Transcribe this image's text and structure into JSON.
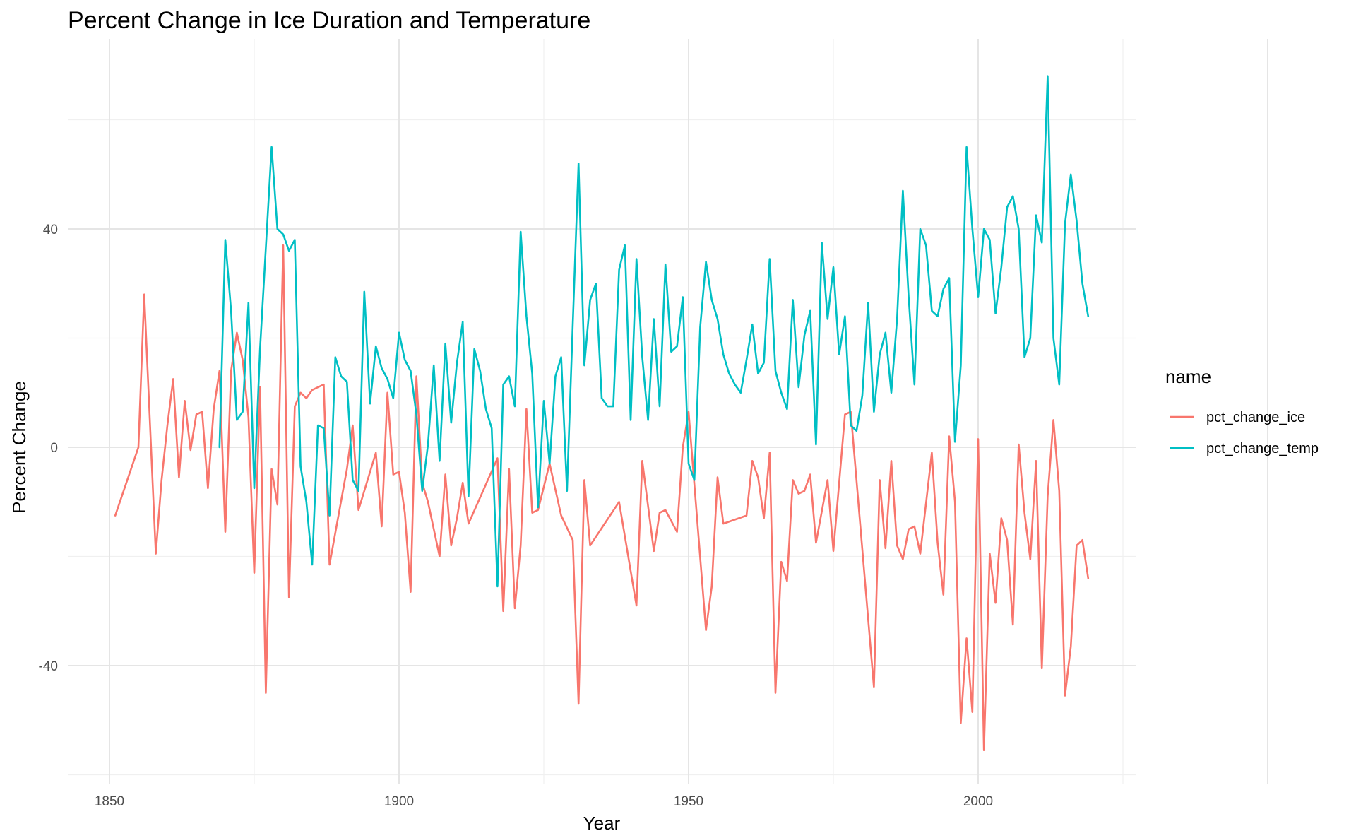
{
  "chart_data": {
    "type": "line",
    "title": "Percent Change in Ice Duration and Temperature",
    "xlabel": "Year",
    "ylabel": "Percent Change",
    "xlim": [
      1843,
      2227
    ],
    "ylim": [
      -60,
      67
    ],
    "x_ticks": [
      1850,
      1900,
      1950,
      2000
    ],
    "y_ticks": [
      -40,
      0,
      40
    ],
    "grid": true,
    "legend": {
      "title": "name",
      "position": "right"
    },
    "series": [
      {
        "name": "pct_change_ice",
        "color": "#F8766D",
        "points": [
          [
            1851,
            -12.5
          ],
          [
            1855,
            0
          ],
          [
            1856,
            28
          ],
          [
            1858,
            -19.5
          ],
          [
            1859,
            -6
          ],
          [
            1860,
            4
          ],
          [
            1861,
            12.5
          ],
          [
            1862,
            -5.5
          ],
          [
            1863,
            8.5
          ],
          [
            1864,
            -0.5
          ],
          [
            1865,
            6
          ],
          [
            1866,
            6.5
          ],
          [
            1867,
            -7.5
          ],
          [
            1868,
            7
          ],
          [
            1869,
            14
          ],
          [
            1870,
            -15.5
          ],
          [
            1871,
            14
          ],
          [
            1872,
            21
          ],
          [
            1873,
            16
          ],
          [
            1874,
            5.5
          ],
          [
            1875,
            -23
          ],
          [
            1876,
            11
          ],
          [
            1877,
            -45
          ],
          [
            1878,
            -4
          ],
          [
            1879,
            -10.5
          ],
          [
            1880,
            37
          ],
          [
            1881,
            -27.5
          ],
          [
            1882,
            7.5
          ],
          [
            1883,
            10
          ],
          [
            1884,
            9
          ],
          [
            1885,
            10.5
          ],
          [
            1886,
            11
          ],
          [
            1887,
            11.5
          ],
          [
            1888,
            -21.5
          ],
          [
            1891,
            -4
          ],
          [
            1892,
            4
          ],
          [
            1893,
            -11.5
          ],
          [
            1896,
            -1
          ],
          [
            1897,
            -14.5
          ],
          [
            1898,
            10
          ],
          [
            1899,
            -5
          ],
          [
            1900,
            -4.5
          ],
          [
            1901,
            -12
          ],
          [
            1902,
            -26.5
          ],
          [
            1903,
            13
          ],
          [
            1904,
            -6.5
          ],
          [
            1905,
            -10
          ],
          [
            1907,
            -20
          ],
          [
            1908,
            -5
          ],
          [
            1909,
            -18
          ],
          [
            1910,
            -13
          ],
          [
            1911,
            -6.5
          ],
          [
            1912,
            -14
          ],
          [
            1917,
            -2
          ],
          [
            1918,
            -30
          ],
          [
            1919,
            -4
          ],
          [
            1920,
            -29.5
          ],
          [
            1921,
            -18
          ],
          [
            1922,
            7
          ],
          [
            1923,
            -12
          ],
          [
            1924,
            -11.5
          ],
          [
            1926,
            -3
          ],
          [
            1928,
            -12.5
          ],
          [
            1930,
            -17
          ],
          [
            1931,
            -47
          ],
          [
            1932,
            -6
          ],
          [
            1933,
            -18
          ],
          [
            1938,
            -10
          ],
          [
            1941,
            -29
          ],
          [
            1942,
            -2.5
          ],
          [
            1944,
            -19
          ],
          [
            1945,
            -12
          ],
          [
            1946,
            -11.5
          ],
          [
            1948,
            -15.5
          ],
          [
            1949,
            0
          ],
          [
            1950,
            6.5
          ],
          [
            1953,
            -33.5
          ],
          [
            1954,
            -25.5
          ],
          [
            1955,
            -5.5
          ],
          [
            1956,
            -14
          ],
          [
            1960,
            -12.5
          ],
          [
            1961,
            -2.5
          ],
          [
            1962,
            -5.5
          ],
          [
            1963,
            -13
          ],
          [
            1964,
            -1
          ],
          [
            1965,
            -45
          ],
          [
            1966,
            -21
          ],
          [
            1967,
            -24.5
          ],
          [
            1968,
            -6
          ],
          [
            1969,
            -8.5
          ],
          [
            1970,
            -8
          ],
          [
            1971,
            -5
          ],
          [
            1972,
            -17.5
          ],
          [
            1974,
            -6
          ],
          [
            1975,
            -19
          ],
          [
            1977,
            6
          ],
          [
            1978,
            6.5
          ],
          [
            1982,
            -44
          ],
          [
            1983,
            -6
          ],
          [
            1984,
            -18.5
          ],
          [
            1985,
            -2.5
          ],
          [
            1986,
            -18
          ],
          [
            1987,
            -20.5
          ],
          [
            1988,
            -15
          ],
          [
            1989,
            -14.5
          ],
          [
            1990,
            -19.5
          ],
          [
            1992,
            -1
          ],
          [
            1993,
            -17.5
          ],
          [
            1994,
            -27
          ],
          [
            1995,
            2
          ],
          [
            1996,
            -10
          ],
          [
            1997,
            -50.5
          ],
          [
            1998,
            -35
          ],
          [
            1999,
            -48.5
          ],
          [
            2000,
            1.5
          ],
          [
            2001,
            -55.5
          ],
          [
            2002,
            -19.5
          ],
          [
            2003,
            -28.5
          ],
          [
            2004,
            -13
          ],
          [
            2005,
            -17
          ],
          [
            2006,
            -32.5
          ],
          [
            2007,
            0.5
          ],
          [
            2008,
            -12
          ],
          [
            2009,
            -20.5
          ],
          [
            2010,
            -2.5
          ],
          [
            2011,
            -40.5
          ],
          [
            2012,
            -9
          ],
          [
            2013,
            5
          ],
          [
            2014,
            -8
          ],
          [
            2015,
            -45.5
          ],
          [
            2016,
            -36.5
          ],
          [
            2017,
            -18
          ],
          [
            2018,
            -17
          ],
          [
            2019,
            -24
          ]
        ]
      },
      {
        "name": "pct_change_temp",
        "color": "#00BFC4",
        "points": [
          [
            1869,
            0
          ],
          [
            1870,
            38
          ],
          [
            1871,
            25
          ],
          [
            1872,
            5
          ],
          [
            1873,
            6.5
          ],
          [
            1874,
            26.5
          ],
          [
            1875,
            -7.5
          ],
          [
            1876,
            18
          ],
          [
            1877,
            36.5
          ],
          [
            1878,
            55
          ],
          [
            1879,
            40
          ],
          [
            1880,
            39
          ],
          [
            1881,
            36
          ],
          [
            1882,
            38
          ],
          [
            1883,
            -3.5
          ],
          [
            1884,
            -10
          ],
          [
            1885,
            -21.5
          ],
          [
            1886,
            4
          ],
          [
            1887,
            3.5
          ],
          [
            1888,
            -12.5
          ],
          [
            1889,
            16.5
          ],
          [
            1890,
            13
          ],
          [
            1891,
            12
          ],
          [
            1892,
            -6
          ],
          [
            1893,
            -8
          ],
          [
            1894,
            28.5
          ],
          [
            1895,
            8
          ],
          [
            1896,
            18.5
          ],
          [
            1897,
            14.5
          ],
          [
            1898,
            12.5
          ],
          [
            1899,
            9
          ],
          [
            1900,
            21
          ],
          [
            1901,
            16
          ],
          [
            1902,
            14
          ],
          [
            1903,
            6
          ],
          [
            1904,
            -8
          ],
          [
            1905,
            0.5
          ],
          [
            1906,
            15
          ],
          [
            1907,
            -2.5
          ],
          [
            1908,
            19
          ],
          [
            1909,
            4.5
          ],
          [
            1910,
            15.5
          ],
          [
            1911,
            23
          ],
          [
            1912,
            -9
          ],
          [
            1913,
            18
          ],
          [
            1914,
            14
          ],
          [
            1915,
            7
          ],
          [
            1916,
            3.5
          ],
          [
            1917,
            -25.5
          ],
          [
            1918,
            11.5
          ],
          [
            1919,
            13
          ],
          [
            1920,
            7.5
          ],
          [
            1921,
            39.5
          ],
          [
            1922,
            24
          ],
          [
            1923,
            13.5
          ],
          [
            1924,
            -11
          ],
          [
            1925,
            8.5
          ],
          [
            1926,
            -3
          ],
          [
            1927,
            13
          ],
          [
            1928,
            16.5
          ],
          [
            1929,
            -8
          ],
          [
            1930,
            22.5
          ],
          [
            1931,
            52
          ],
          [
            1932,
            15
          ],
          [
            1933,
            27
          ],
          [
            1934,
            30
          ],
          [
            1935,
            9
          ],
          [
            1936,
            7.5
          ],
          [
            1937,
            7.5
          ],
          [
            1938,
            32.5
          ],
          [
            1939,
            37
          ],
          [
            1940,
            5
          ],
          [
            1941,
            34.5
          ],
          [
            1942,
            16.5
          ],
          [
            1943,
            5
          ],
          [
            1944,
            23.5
          ],
          [
            1945,
            7.5
          ],
          [
            1946,
            33.5
          ],
          [
            1947,
            17.5
          ],
          [
            1948,
            18.5
          ],
          [
            1949,
            27.5
          ],
          [
            1950,
            -3
          ],
          [
            1951,
            -6
          ],
          [
            1952,
            22
          ],
          [
            1953,
            34
          ],
          [
            1954,
            27
          ],
          [
            1955,
            23.5
          ],
          [
            1956,
            17
          ],
          [
            1957,
            13.5
          ],
          [
            1958,
            11.5
          ],
          [
            1959,
            10
          ],
          [
            1960,
            16
          ],
          [
            1961,
            22.5
          ],
          [
            1962,
            13.5
          ],
          [
            1963,
            15.5
          ],
          [
            1964,
            34.5
          ],
          [
            1965,
            14
          ],
          [
            1966,
            10
          ],
          [
            1967,
            7
          ],
          [
            1968,
            27
          ],
          [
            1969,
            11
          ],
          [
            1970,
            20.5
          ],
          [
            1971,
            25
          ],
          [
            1972,
            0.5
          ],
          [
            1973,
            37.5
          ],
          [
            1974,
            23.5
          ],
          [
            1975,
            33
          ],
          [
            1976,
            17
          ],
          [
            1977,
            24
          ],
          [
            1978,
            4
          ],
          [
            1979,
            3
          ],
          [
            1980,
            9.5
          ],
          [
            1981,
            26.5
          ],
          [
            1982,
            6.5
          ],
          [
            1983,
            17
          ],
          [
            1984,
            21
          ],
          [
            1985,
            10
          ],
          [
            1986,
            23.5
          ],
          [
            1987,
            47
          ],
          [
            1988,
            27.5
          ],
          [
            1989,
            11.5
          ],
          [
            1990,
            40
          ],
          [
            1991,
            37
          ],
          [
            1992,
            25
          ],
          [
            1993,
            24
          ],
          [
            1994,
            29
          ],
          [
            1995,
            31
          ],
          [
            1996,
            1
          ],
          [
            1997,
            15
          ],
          [
            1998,
            55
          ],
          [
            1999,
            40
          ],
          [
            2000,
            27.5
          ],
          [
            2001,
            40
          ],
          [
            2002,
            38
          ],
          [
            2003,
            24.5
          ],
          [
            2004,
            33
          ],
          [
            2005,
            44
          ],
          [
            2006,
            46
          ],
          [
            2007,
            40
          ],
          [
            2008,
            16.5
          ],
          [
            2009,
            20
          ],
          [
            2010,
            42.5
          ],
          [
            2011,
            37.5
          ],
          [
            2012,
            68
          ],
          [
            2013,
            20
          ],
          [
            2014,
            11.5
          ],
          [
            2015,
            41
          ],
          [
            2016,
            50
          ],
          [
            2017,
            41.5
          ],
          [
            2018,
            30
          ],
          [
            2019,
            24
          ]
        ]
      }
    ]
  }
}
